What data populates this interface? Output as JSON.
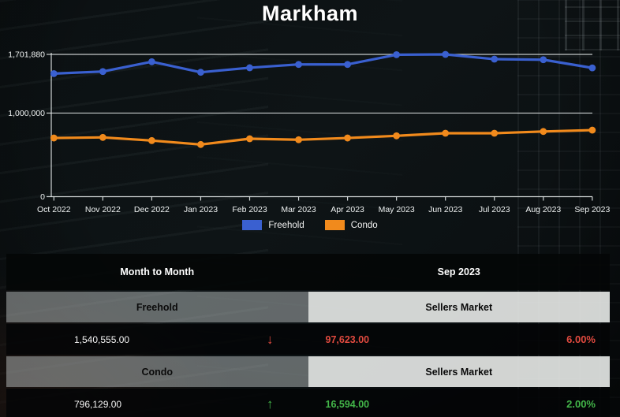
{
  "title": "Markham",
  "chart_data": {
    "type": "line",
    "x": [
      "Oct 2022",
      "Nov 2022",
      "Dec 2022",
      "Jan 2023",
      "Feb 2023",
      "Mar 2023",
      "Apr 2023",
      "May 2023",
      "Jun 2023",
      "Jul 2023",
      "Aug 2023",
      "Sep 2023"
    ],
    "series": [
      {
        "name": "Freehold",
        "color": "#3a60d0",
        "values": [
          1472000,
          1497000,
          1614000,
          1488000,
          1542000,
          1582000,
          1582000,
          1698000,
          1701880,
          1645000,
          1638178,
          1540555
        ]
      },
      {
        "name": "Condo",
        "color": "#f18a1c",
        "values": [
          702000,
          709000,
          671000,
          624000,
          693000,
          681000,
          702000,
          728000,
          759000,
          759000,
          779535,
          796129
        ]
      }
    ],
    "ylim": [
      0,
      1701880
    ],
    "yticks": [
      {
        "value": 0,
        "label": "0"
      },
      {
        "value": 1000000,
        "label": "1,000,000"
      },
      {
        "value": 1701880,
        "label": "1,701,880"
      }
    ],
    "grid": "horizontal",
    "legend_position": "bottom",
    "axis_color": "#e6ebeb"
  },
  "legend": {
    "items": [
      {
        "label": "Freehold",
        "color": "#3a60d0"
      },
      {
        "label": "Condo",
        "color": "#f18a1c"
      }
    ]
  },
  "table": {
    "header": {
      "left": "Month to Month",
      "right": "Sep 2023"
    },
    "sections": [
      {
        "name": "Freehold",
        "market": "Sellers Market",
        "value": "1,540,555.00",
        "direction": "down",
        "arrow": "↓",
        "change": "97,623.00",
        "percent": "6.00%",
        "trend_color": "#e04a3f"
      },
      {
        "name": "Condo",
        "market": "Sellers Market",
        "value": "796,129.00",
        "direction": "up",
        "arrow": "↑",
        "change": "16,594.00",
        "percent": "2.00%",
        "trend_color": "#43b649"
      }
    ]
  }
}
